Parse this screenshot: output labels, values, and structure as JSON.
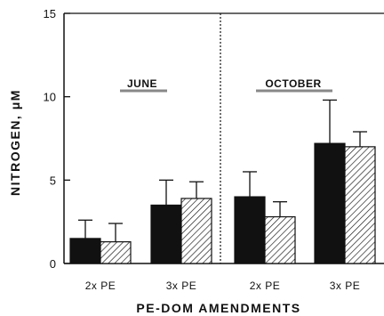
{
  "chart_data": {
    "type": "bar",
    "xlabel": "PE-DOM AMENDMENTS",
    "ylabel": "NITROGEN, μM",
    "ylim": [
      0,
      15
    ],
    "yticks": [
      "0",
      "5",
      "10",
      "15"
    ],
    "categories": [
      "2x PE",
      "3x PE",
      "2x PE",
      "3x PE"
    ],
    "panels": [
      "JUNE",
      "OCTOBER"
    ],
    "series": [
      {
        "fill": "solid",
        "color": "#111111",
        "values": [
          1.5,
          3.5,
          4.0,
          7.2
        ],
        "errors": [
          1.1,
          1.5,
          1.5,
          2.6
        ]
      },
      {
        "fill": "hatched",
        "color": "#ffffff",
        "values": [
          1.3,
          3.9,
          2.8,
          7.0
        ],
        "errors": [
          1.1,
          1.0,
          0.9,
          0.9
        ]
      }
    ],
    "grid": false,
    "legend": "none"
  }
}
